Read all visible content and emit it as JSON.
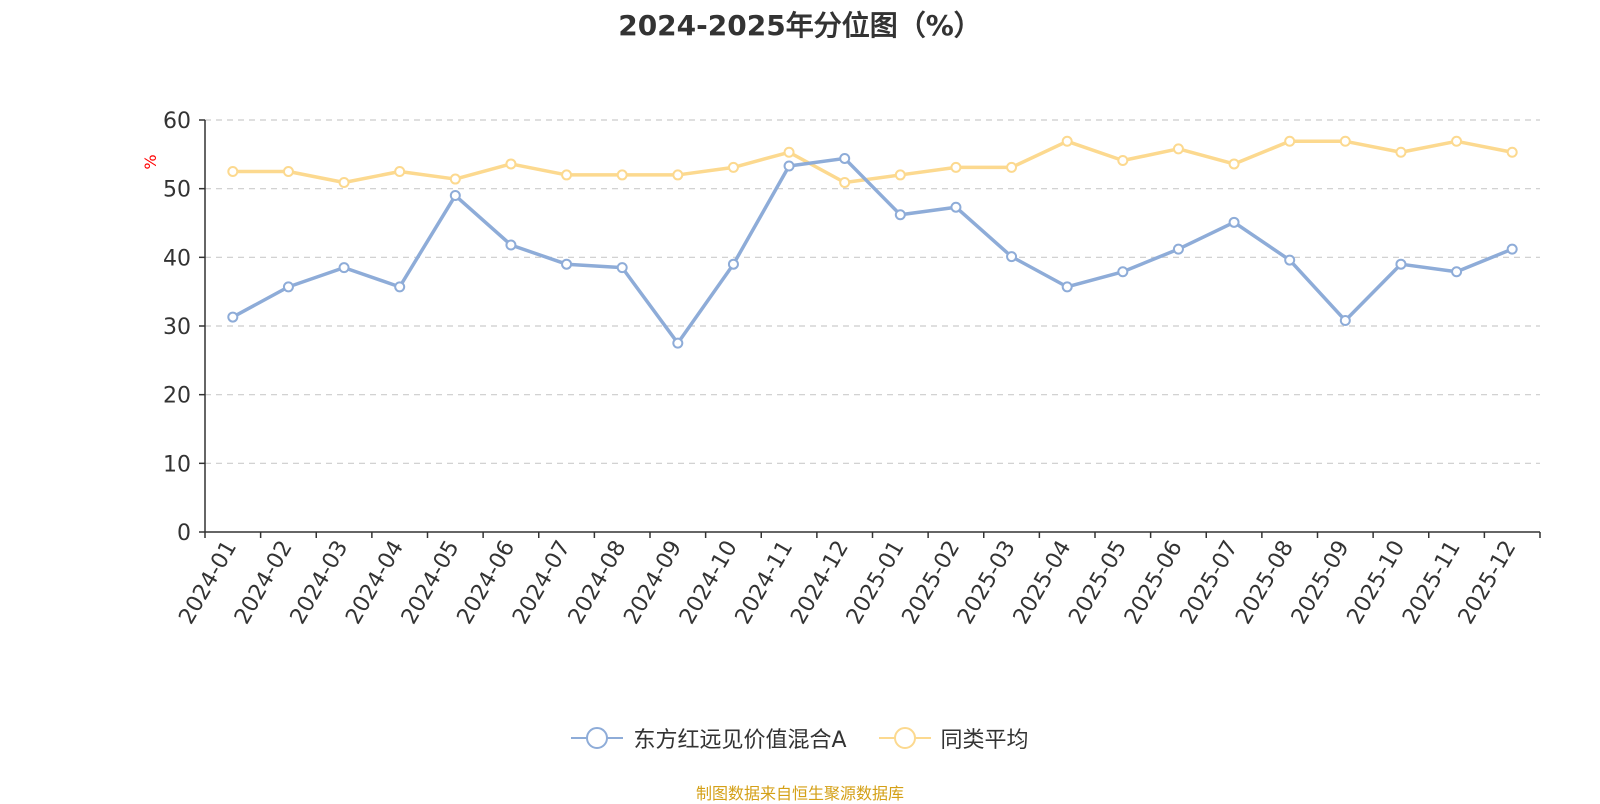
{
  "chart_data": {
    "type": "line",
    "title": "2024-2025年分位图（%）",
    "ylabel": "%",
    "xlabel": "",
    "ylim": [
      0,
      60
    ],
    "yticks": [
      0,
      10,
      20,
      30,
      40,
      50,
      60
    ],
    "grid": true,
    "legend_position": "bottom-center",
    "categories": [
      "2024-01",
      "2024-02",
      "2024-03",
      "2024-04",
      "2024-05",
      "2024-06",
      "2024-07",
      "2024-08",
      "2024-09",
      "2024-10",
      "2024-11",
      "2024-12",
      "2025-01",
      "2025-02",
      "2025-03",
      "2025-04",
      "2025-05",
      "2025-06",
      "2025-07",
      "2025-08",
      "2025-09",
      "2025-10",
      "2025-11",
      "2025-12"
    ],
    "series": [
      {
        "name": "东方红远见价值混合A",
        "color": "#8eacd8",
        "values": [
          31.3,
          35.7,
          38.5,
          35.7,
          49.0,
          41.8,
          39.0,
          38.5,
          27.5,
          39.0,
          53.3,
          54.4,
          46.2,
          47.3,
          40.1,
          35.7,
          37.9,
          41.2,
          45.1,
          39.6,
          30.8,
          39.0,
          37.9,
          41.2
        ]
      },
      {
        "name": "同类平均",
        "color": "#fcd98f",
        "values": [
          52.5,
          52.5,
          50.9,
          52.5,
          51.4,
          53.6,
          52.0,
          52.0,
          52.0,
          53.1,
          55.3,
          50.9,
          52.0,
          53.1,
          53.1,
          56.9,
          54.1,
          55.8,
          53.6,
          56.9,
          56.9,
          55.3,
          56.9,
          55.3
        ]
      }
    ],
    "colors": {
      "axis": "#333333",
      "grid": "#cccccc",
      "ylabel": "#ff0000",
      "source": "#d4a017"
    }
  },
  "source_text": "制图数据来自恒生聚源数据库"
}
